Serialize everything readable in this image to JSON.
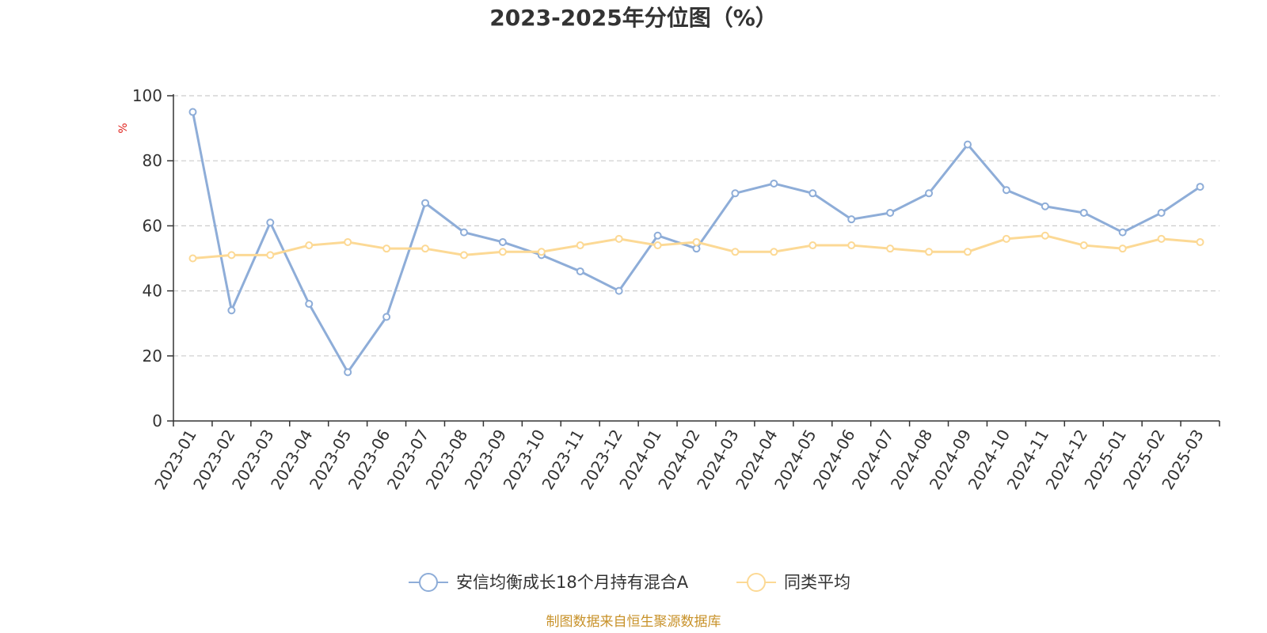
{
  "chart_data": {
    "type": "line",
    "title": "2023-2025年分位图（%）",
    "ylabel": "%",
    "xlabel": "",
    "ylim": [
      0,
      100
    ],
    "yticks": [
      0,
      20,
      40,
      60,
      80,
      100
    ],
    "grid": true,
    "legend_position": "bottom",
    "categories": [
      "2023-01",
      "2023-02",
      "2023-03",
      "2023-04",
      "2023-05",
      "2023-06",
      "2023-07",
      "2023-08",
      "2023-09",
      "2023-10",
      "2023-11",
      "2023-12",
      "2024-01",
      "2024-02",
      "2024-03",
      "2024-04",
      "2024-05",
      "2024-06",
      "2024-07",
      "2024-08",
      "2024-09",
      "2024-10",
      "2024-11",
      "2024-12",
      "2025-01",
      "2025-02",
      "2025-03"
    ],
    "series": [
      {
        "name": "安信均衡成长18个月持有混合A",
        "color": "#8eadd8",
        "values": [
          95,
          34,
          61,
          36,
          15,
          32,
          67,
          58,
          55,
          51,
          46,
          40,
          57,
          53,
          70,
          73,
          70,
          62,
          64,
          70,
          85,
          71,
          66,
          64,
          58,
          64,
          72
        ]
      },
      {
        "name": "同类平均",
        "color": "#fcd995",
        "values": [
          50,
          51,
          51,
          54,
          55,
          53,
          53,
          51,
          52,
          52,
          54,
          56,
          54,
          55,
          52,
          52,
          54,
          54,
          53,
          52,
          52,
          56,
          57,
          54,
          53,
          56,
          55
        ]
      }
    ],
    "ylabel_color": "#e0201b",
    "source_text": "制图数据来自恒生聚源数据库",
    "source_color": "#c8922a"
  }
}
